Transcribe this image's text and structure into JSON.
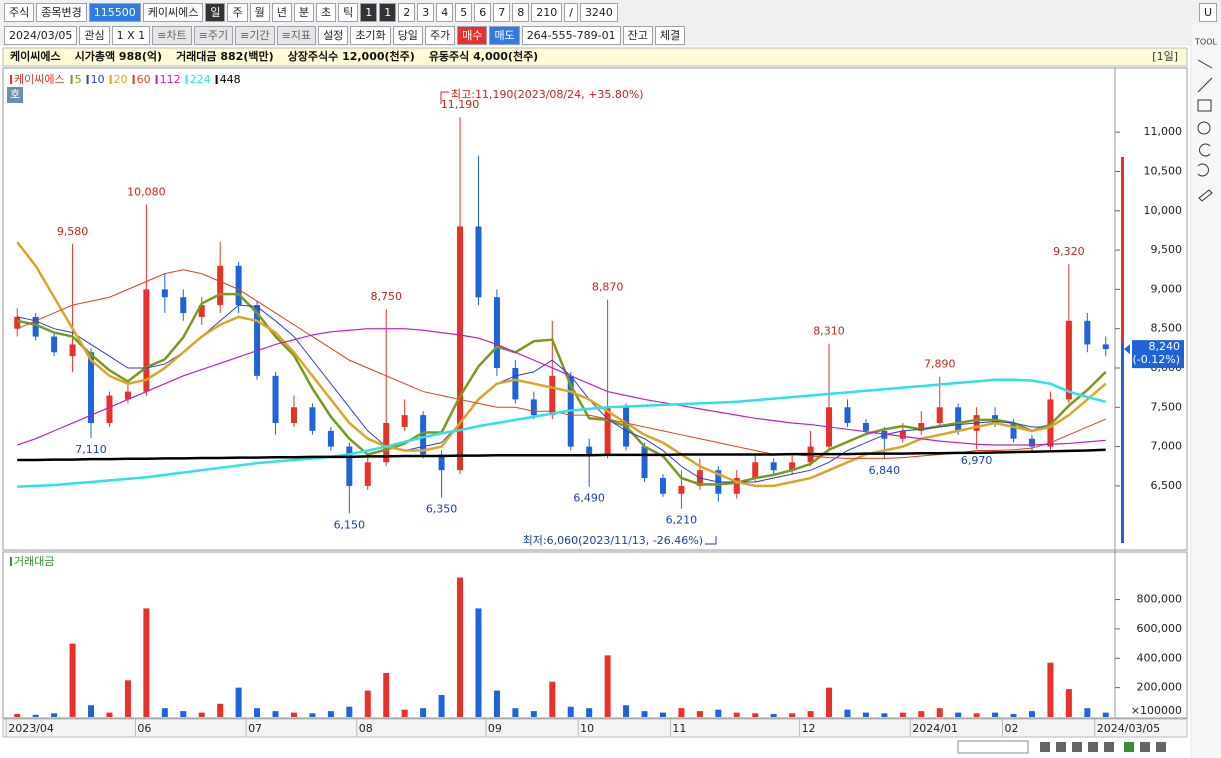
{
  "toolbar": {
    "row1": [
      "주식",
      "종목변경",
      "115500",
      "케이씨에스",
      "일",
      "주",
      "월",
      "년",
      "분",
      "초",
      "틱",
      "1",
      "1",
      "2",
      "3",
      "4",
      "5",
      "6",
      "7",
      "8",
      "210",
      "/",
      "3240",
      "U"
    ],
    "row2": [
      "2024/03/05",
      "관심",
      "1 X 1",
      "≡차트",
      "≡주기",
      "≡기간",
      "≡지표",
      "설정",
      "초기화",
      "당일",
      "주가",
      "매수",
      "매도",
      "264-555-789-01",
      "잔고",
      "체결"
    ]
  },
  "info_bar": {
    "fields": [
      "케이씨에스",
      "시가총액 988(억)",
      "거래대금 882(백만)",
      "상장주식수 12,000(천주)",
      "유동주식 4,000(천주)"
    ],
    "period": "[1일]"
  },
  "chart_panel": {
    "button": "호"
  },
  "side_toolbar": {
    "label": "TOOL"
  },
  "chart_data": [
    {
      "type": "candlestick",
      "name": "케이씨에스",
      "up_color": "#e8312a",
      "down_color": "#1f63d6",
      "open": [
        8500,
        8650,
        8400,
        8150,
        8200,
        7300,
        7600,
        7700,
        9000,
        8900,
        8650,
        8800,
        9300,
        8800,
        7900,
        7300,
        7500,
        7200,
        7000,
        6500,
        6800,
        7250,
        7400,
        6900,
        6700,
        9800,
        8900,
        8000,
        7600,
        7400,
        7900,
        7000,
        6900,
        7500,
        7000,
        6600,
        6400,
        6500,
        6700,
        6400,
        6600,
        6800,
        6700,
        6800,
        7000,
        7500,
        7300,
        7200,
        7100,
        7200,
        7300,
        7500,
        7200,
        7400,
        7300,
        7100,
        7000,
        7600,
        8600,
        8300
      ],
      "high": [
        8760,
        8700,
        8450,
        9580,
        8250,
        7700,
        7800,
        10080,
        9200,
        9000,
        8900,
        9600,
        9350,
        8850,
        7950,
        7650,
        7550,
        7250,
        7050,
        6900,
        8750,
        7600,
        7450,
        6950,
        11190,
        10700,
        9000,
        8100,
        7700,
        8600,
        7950,
        7100,
        8870,
        7550,
        7050,
        6650,
        6700,
        6850,
        6750,
        6700,
        6900,
        6850,
        6900,
        7200,
        8310,
        7600,
        7350,
        7250,
        7300,
        7450,
        7890,
        7550,
        7500,
        7500,
        7350,
        7150,
        7700,
        9320,
        8700,
        8400
      ],
      "low": [
        8400,
        8350,
        8150,
        7950,
        7110,
        7250,
        7550,
        7650,
        8700,
        8600,
        8550,
        8700,
        8700,
        7850,
        7150,
        7250,
        7150,
        6950,
        6150,
        6450,
        6750,
        7200,
        6850,
        6350,
        6650,
        8800,
        7900,
        7550,
        7350,
        7350,
        6950,
        6490,
        6850,
        6950,
        6550,
        6360,
        6210,
        6450,
        6300,
        6340,
        6550,
        6650,
        6650,
        6750,
        6950,
        7250,
        7150,
        6840,
        7050,
        7150,
        7250,
        7150,
        6970,
        7250,
        7050,
        6950,
        6950,
        7550,
        8200,
        8150
      ],
      "close": [
        8650,
        8400,
        8200,
        8300,
        7300,
        7650,
        7700,
        9000,
        8900,
        8700,
        8800,
        9300,
        8800,
        7900,
        7300,
        7500,
        7200,
        7000,
        6500,
        6800,
        7300,
        7400,
        6900,
        6700,
        9800,
        8900,
        8000,
        7600,
        7400,
        7900,
        7000,
        6900,
        7500,
        7000,
        6600,
        6400,
        6500,
        6700,
        6400,
        6600,
        6800,
        6700,
        6800,
        7000,
        7500,
        7300,
        7200,
        7100,
        7200,
        7300,
        7500,
        7200,
        7400,
        7300,
        7100,
        7000,
        7600,
        8600,
        8300,
        8240
      ],
      "moving_averages": [
        {
          "name": "5",
          "color": "#7a9a1e",
          "values": [
            8600,
            8550,
            8450,
            8400,
            8170,
            7970,
            7830,
            8010,
            8110,
            8390,
            8820,
            8940,
            8940,
            8700,
            8400,
            8160,
            7740,
            7380,
            7100,
            6900,
            6960,
            7040,
            7180,
            7180,
            7640,
            8020,
            8270,
            8200,
            8340,
            8360,
            7780,
            7360,
            7340,
            7260,
            7000,
            6880,
            6600,
            6520,
            6520,
            6540,
            6600,
            6640,
            6700,
            6780,
            6960,
            7060,
            7160,
            7220,
            7260,
            7220,
            7260,
            7300,
            7340,
            7340,
            7300,
            7200,
            7280,
            7520,
            7720,
            7950
          ]
        },
        {
          "name": "10",
          "color": "#2a3fd0",
          "values": [
            8650,
            8600,
            8500,
            8450,
            8300,
            8150,
            8000,
            8000,
            8050,
            8200,
            8400,
            8600,
            8800,
            8780,
            8600,
            8400,
            8100,
            7800,
            7500,
            7200,
            7000,
            6950,
            7000,
            7050,
            7300,
            7600,
            7800,
            7900,
            7950,
            8100,
            7900,
            7600,
            7350,
            7200,
            7100,
            6950,
            6750,
            6600,
            6550,
            6550,
            6550,
            6600,
            6650,
            6700,
            6800,
            6950,
            7050,
            7150,
            7200,
            7220,
            7250,
            7280,
            7300,
            7320,
            7300,
            7250,
            7250,
            7400,
            7600,
            7800
          ]
        },
        {
          "name": "20",
          "color": "#d9a62a",
          "values": [
            9600,
            9300,
            8900,
            8500,
            8100,
            7900,
            7800,
            7850,
            8000,
            8200,
            8400,
            8550,
            8650,
            8600,
            8450,
            8200,
            7900,
            7600,
            7300,
            7100,
            7000,
            6950,
            6950,
            7000,
            7300,
            7600,
            7800,
            7850,
            7800,
            7750,
            7700,
            7600,
            7450,
            7300,
            7150,
            7050,
            6900,
            6750,
            6650,
            6550,
            6500,
            6500,
            6550,
            6600,
            6700,
            6800,
            6900,
            6950,
            7000,
            7100,
            7150,
            7200,
            7250,
            7300,
            7250,
            7200,
            7250,
            7400,
            7600,
            7800
          ]
        },
        {
          "name": "60",
          "color": "#e0401a",
          "values": [
            8500,
            8600,
            8700,
            8800,
            8850,
            8900,
            9000,
            9100,
            9200,
            9250,
            9200,
            9100,
            9000,
            8850,
            8700,
            8550,
            8400,
            8250,
            8100,
            8000,
            7900,
            7800,
            7700,
            7650,
            7600,
            7550,
            7500,
            7500,
            7450,
            7450,
            7400,
            7400,
            7350,
            7300,
            7250,
            7200,
            7150,
            7100,
            7050,
            7000,
            6950,
            6900,
            6900,
            6880,
            6860,
            6850,
            6850,
            6850,
            6860,
            6880,
            6900,
            6920,
            6950,
            6950,
            6960,
            6980,
            7050,
            7150,
            7250,
            7350
          ]
        },
        {
          "name": "112",
          "color": "#c020c0",
          "values": [
            7020,
            7100,
            7200,
            7300,
            7400,
            7500,
            7600,
            7700,
            7800,
            7900,
            7980,
            8060,
            8140,
            8220,
            8300,
            8360,
            8420,
            8460,
            8480,
            8500,
            8500,
            8500,
            8480,
            8450,
            8420,
            8380,
            8300,
            8200,
            8100,
            8000,
            7900,
            7800,
            7700,
            7650,
            7600,
            7560,
            7520,
            7480,
            7440,
            7400,
            7360,
            7330,
            7300,
            7280,
            7250,
            7220,
            7190,
            7160,
            7130,
            7100,
            7070,
            7050,
            7030,
            7020,
            7020,
            7020,
            7030,
            7040,
            7060,
            7080
          ]
        },
        {
          "name": "224",
          "color": "#30e0e8",
          "values": [
            6490,
            6500,
            6510,
            6530,
            6550,
            6570,
            6590,
            6610,
            6640,
            6670,
            6700,
            6730,
            6760,
            6790,
            6810,
            6830,
            6850,
            6870,
            6900,
            6950,
            7000,
            7060,
            7120,
            7170,
            7210,
            7260,
            7300,
            7340,
            7380,
            7420,
            7460,
            7480,
            7500,
            7510,
            7520,
            7530,
            7540,
            7550,
            7560,
            7570,
            7590,
            7610,
            7630,
            7650,
            7670,
            7690,
            7710,
            7730,
            7750,
            7770,
            7790,
            7810,
            7830,
            7850,
            7850,
            7840,
            7800,
            7700,
            7630,
            7570
          ]
        },
        {
          "name": "448",
          "color": "#000000",
          "values": [
            6830,
            6830,
            6835,
            6835,
            6840,
            6840,
            6845,
            6845,
            6850,
            6850,
            6855,
            6855,
            6860,
            6860,
            6865,
            6865,
            6870,
            6870,
            6870,
            6875,
            6875,
            6880,
            6880,
            6880,
            6885,
            6885,
            6890,
            6890,
            6890,
            6890,
            6890,
            6890,
            6895,
            6895,
            6895,
            6895,
            6900,
            6900,
            6900,
            6900,
            6900,
            6900,
            6905,
            6905,
            6905,
            6905,
            6910,
            6910,
            6910,
            6915,
            6915,
            6920,
            6920,
            6925,
            6930,
            6935,
            6940,
            6945,
            6950,
            6960
          ]
        }
      ],
      "ylim": [
        5710,
        11600
      ],
      "yticks": [
        {
          "value": 6500,
          "label": "6,500"
        },
        {
          "value": 7000,
          "label": "7,000"
        },
        {
          "value": 7500,
          "label": "7,500"
        },
        {
          "value": 8000,
          "label": "8,000"
        },
        {
          "value": 8500,
          "label": "8,500"
        },
        {
          "value": 9000,
          "label": "9,000"
        },
        {
          "value": 9500,
          "label": "9,500"
        },
        {
          "value": 10000,
          "label": "10,000"
        },
        {
          "value": 10500,
          "label": "10,500"
        },
        {
          "value": 11000,
          "label": "11,000"
        }
      ],
      "high_labels": [
        {
          "value": 9580,
          "label": "9,580"
        },
        {
          "value": 10080,
          "label": "10,080"
        },
        {
          "value": 8750,
          "label": "8,750"
        },
        {
          "value": 11190,
          "label": "11,190"
        },
        {
          "value": 8870,
          "label": "8,870"
        },
        {
          "value": 8310,
          "label": "8,310"
        },
        {
          "value": 7890,
          "label": "7,890"
        },
        {
          "value": 9320,
          "label": "9,320"
        }
      ],
      "low_labels": [
        {
          "value": 7110,
          "label": "7,110"
        },
        {
          "value": 6150,
          "label": "6,150"
        },
        {
          "value": 6350,
          "label": "6,350"
        },
        {
          "value": 6490,
          "label": "6,490"
        },
        {
          "value": 6210,
          "label": "6,210"
        },
        {
          "value": 6840,
          "label": "6,840"
        },
        {
          "value": 6970,
          "label": "6,970"
        }
      ],
      "max_note": "최고:11,190(2023/08/24, +35.80%)",
      "min_note": "최저:6,060(2023/11/13, -26.46%)",
      "current_price": {
        "value": 8240,
        "label": "8,240"
      },
      "current_change": "(-0.12%)"
    },
    {
      "type": "bar",
      "title": "거래대금",
      "categories": [
        "2023/04",
        null,
        null,
        null,
        null,
        null,
        null,
        "06",
        null,
        null,
        null,
        null,
        null,
        "07",
        null,
        null,
        null,
        null,
        null,
        "08",
        null,
        null,
        null,
        null,
        null,
        null,
        "09",
        null,
        null,
        null,
        null,
        "10",
        null,
        null,
        null,
        null,
        "11",
        null,
        null,
        null,
        null,
        null,
        null,
        "12",
        null,
        null,
        null,
        null,
        null,
        "2024/01",
        null,
        null,
        null,
        null,
        "02",
        null,
        null,
        null,
        null,
        "2024/03/05"
      ],
      "values": [
        20000,
        15000,
        25000,
        500000,
        80000,
        30000,
        250000,
        740000,
        60000,
        40000,
        30000,
        90000,
        200000,
        60000,
        40000,
        30000,
        25000,
        40000,
        70000,
        180000,
        300000,
        50000,
        60000,
        150000,
        950000,
        740000,
        180000,
        60000,
        40000,
        240000,
        70000,
        60000,
        420000,
        80000,
        40000,
        30000,
        60000,
        40000,
        50000,
        30000,
        25000,
        20000,
        25000,
        40000,
        200000,
        50000,
        30000,
        25000,
        30000,
        40000,
        60000,
        30000,
        25000,
        30000,
        20000,
        40000,
        370000,
        190000,
        60000,
        30000
      ],
      "ylim": [
        0,
        1090000
      ],
      "yticks": [
        {
          "value": 200000,
          "label": "200,000"
        },
        {
          "value": 400000,
          "label": "400,000"
        },
        {
          "value": 600000,
          "label": "600,000"
        },
        {
          "value": 800000,
          "label": "800,000"
        }
      ],
      "unit_label": "×100000"
    }
  ]
}
